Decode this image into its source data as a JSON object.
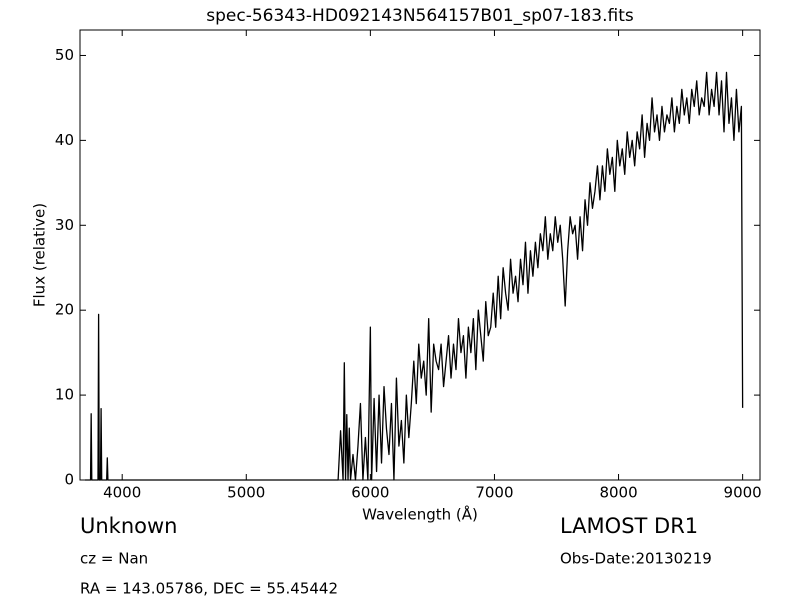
{
  "chart_data": {
    "type": "line",
    "title": "spec-56343-HD092143N564157B01_sp07-183.fits",
    "x_label": "Wavelength (Å)",
    "y_label": "Flux (relative)",
    "xlim": [
      3660,
      9140
    ],
    "ylim": [
      0,
      53
    ],
    "xticks": [
      4000,
      5000,
      6000,
      7000,
      8000,
      9000
    ],
    "yticks": [
      0,
      10,
      20,
      30,
      40,
      50
    ],
    "color": "#000000",
    "annotations": [
      "Unknown",
      "cz = Nan",
      "RA = 143.05786, DEC = 55.45442",
      "LAMOST DR1",
      "Obs-Date:20130219"
    ],
    "x": [
      3700,
      3745,
      3750,
      3755,
      3805,
      3810,
      3815,
      3825,
      3830,
      3835,
      3875,
      3880,
      3885,
      5740,
      5760,
      5780,
      5790,
      5800,
      5810,
      5820,
      5830,
      5840,
      5860,
      5880,
      5900,
      5920,
      5940,
      5960,
      5980,
      6000,
      6010,
      6030,
      6050,
      6070,
      6090,
      6110,
      6130,
      6150,
      6170,
      6190,
      6210,
      6230,
      6250,
      6270,
      6290,
      6310,
      6330,
      6350,
      6370,
      6390,
      6410,
      6430,
      6450,
      6470,
      6490,
      6510,
      6530,
      6550,
      6570,
      6590,
      6610,
      6630,
      6650,
      6670,
      6690,
      6710,
      6730,
      6750,
      6770,
      6790,
      6810,
      6830,
      6850,
      6870,
      6890,
      6910,
      6930,
      6950,
      6970,
      6990,
      7010,
      7030,
      7050,
      7070,
      7090,
      7110,
      7130,
      7150,
      7170,
      7190,
      7210,
      7230,
      7250,
      7270,
      7290,
      7310,
      7330,
      7350,
      7370,
      7390,
      7410,
      7430,
      7450,
      7470,
      7490,
      7510,
      7530,
      7550,
      7570,
      7590,
      7610,
      7630,
      7650,
      7670,
      7690,
      7710,
      7730,
      7750,
      7770,
      7790,
      7810,
      7830,
      7850,
      7870,
      7890,
      7910,
      7930,
      7950,
      7970,
      7990,
      8010,
      8030,
      8050,
      8070,
      8090,
      8110,
      8130,
      8150,
      8170,
      8190,
      8210,
      8230,
      8250,
      8270,
      8290,
      8310,
      8330,
      8350,
      8370,
      8390,
      8410,
      8430,
      8450,
      8470,
      8490,
      8510,
      8530,
      8550,
      8570,
      8590,
      8610,
      8630,
      8650,
      8670,
      8690,
      8710,
      8730,
      8750,
      8770,
      8790,
      8810,
      8830,
      8850,
      8870,
      8890,
      8910,
      8930,
      8950,
      8970,
      8990,
      9000
    ],
    "values": [
      0,
      0,
      7.8,
      0,
      0,
      19.5,
      0,
      0,
      8.4,
      0,
      0,
      2.6,
      0,
      0,
      5.8,
      0,
      13.8,
      0,
      7.7,
      0,
      6.1,
      0,
      3,
      0,
      4,
      9,
      0,
      5,
      0,
      18,
      0,
      9.6,
      1,
      10,
      2,
      11,
      6,
      3,
      9,
      0,
      12,
      4,
      7,
      2,
      10,
      5,
      9,
      14,
      9,
      16,
      12,
      14,
      10,
      19,
      8,
      16,
      14,
      13,
      16,
      11,
      14,
      17,
      12,
      16,
      13,
      19,
      15,
      17,
      12,
      18,
      15,
      19,
      13,
      20,
      17,
      14,
      21,
      17,
      18,
      22,
      18,
      24,
      19,
      25,
      22,
      20,
      26,
      22,
      24,
      21,
      26,
      23,
      28,
      22,
      27,
      24,
      28,
      25,
      29,
      27,
      31,
      26,
      29,
      27,
      31,
      28,
      30,
      26,
      20.5,
      27,
      31,
      29,
      30,
      26,
      31,
      27,
      33,
      30,
      35,
      32,
      34,
      37,
      33,
      37,
      34,
      39,
      36,
      38,
      34,
      40,
      37,
      39,
      36,
      41,
      38,
      40,
      37,
      41,
      39,
      43,
      38,
      42,
      40,
      45,
      41,
      43,
      40,
      44,
      41,
      43,
      42,
      45,
      41,
      44,
      42,
      46,
      43,
      45,
      42,
      46,
      44,
      47,
      43,
      45,
      44,
      48,
      43,
      46,
      44,
      48,
      43,
      47,
      41,
      48,
      42,
      45,
      40,
      46,
      41,
      44,
      8.5
    ]
  }
}
